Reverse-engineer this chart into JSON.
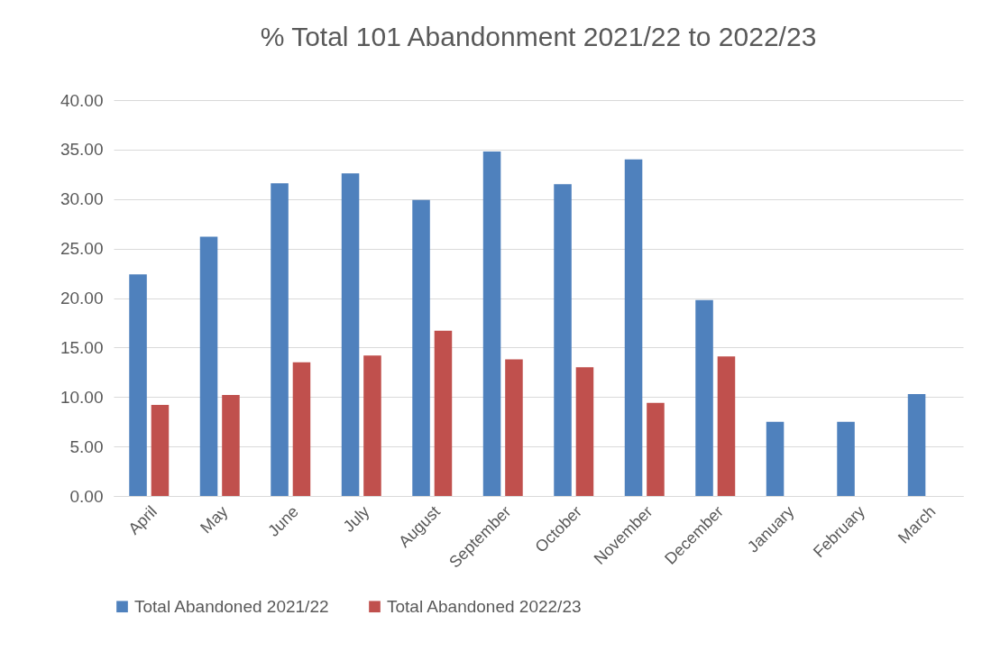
{
  "chart_data": {
    "type": "bar",
    "title": "% Total 101 Abandonment 2021/22 to 2022/23",
    "categories": [
      "April",
      "May",
      "June",
      "July",
      "August",
      "September",
      "October",
      "November",
      "December",
      "January",
      "February",
      "March"
    ],
    "series": [
      {
        "name": "Total Abandoned 2021/22",
        "color": "#4f81bd",
        "values": [
          22.4,
          26.2,
          31.6,
          32.6,
          29.9,
          34.8,
          31.5,
          34.0,
          19.8,
          7.5,
          7.5,
          10.3
        ]
      },
      {
        "name": "Total Abandoned 2022/23",
        "color": "#c0504d",
        "values": [
          9.2,
          10.2,
          13.5,
          14.2,
          16.7,
          13.8,
          13.0,
          9.4,
          14.1,
          null,
          null,
          null
        ]
      }
    ],
    "ylim": [
      0,
      40
    ],
    "yticks": [
      {
        "value": 0,
        "label": "0.00"
      },
      {
        "value": 5,
        "label": "5.00"
      },
      {
        "value": 10,
        "label": "10.00"
      },
      {
        "value": 15,
        "label": "15.00"
      },
      {
        "value": 20,
        "label": "20.00"
      },
      {
        "value": 25,
        "label": "25.00"
      },
      {
        "value": 30,
        "label": "30.00"
      },
      {
        "value": 35,
        "label": "35.00"
      },
      {
        "value": 40,
        "label": "40.00"
      }
    ],
    "grid": "y",
    "legend": "bottom"
  }
}
